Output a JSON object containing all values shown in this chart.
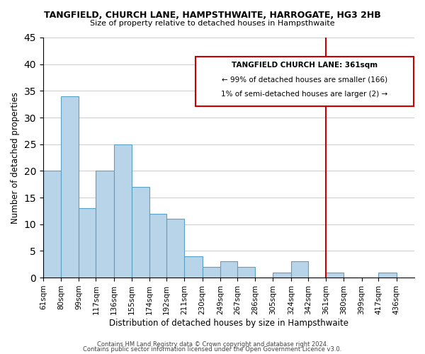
{
  "title": "TANGFIELD, CHURCH LANE, HAMPSTHWAITE, HARROGATE, HG3 2HB",
  "subtitle": "Size of property relative to detached houses in Hampsthwaite",
  "xlabel": "Distribution of detached houses by size in Hampsthwaite",
  "ylabel": "Number of detached properties",
  "bin_labels": [
    "61sqm",
    "80sqm",
    "99sqm",
    "117sqm",
    "136sqm",
    "155sqm",
    "174sqm",
    "192sqm",
    "211sqm",
    "230sqm",
    "249sqm",
    "267sqm",
    "286sqm",
    "305sqm",
    "324sqm",
    "342sqm",
    "361sqm",
    "380sqm",
    "399sqm",
    "417sqm",
    "436sqm"
  ],
  "bin_edges": [
    61,
    80,
    99,
    117,
    136,
    155,
    174,
    192,
    211,
    230,
    249,
    267,
    286,
    305,
    324,
    342,
    361,
    380,
    399,
    417,
    436
  ],
  "counts": [
    20,
    34,
    13,
    20,
    25,
    17,
    12,
    11,
    4,
    2,
    3,
    2,
    0,
    1,
    3,
    0,
    1,
    0,
    0,
    1
  ],
  "bar_color": "#b8d4e8",
  "bar_edge_color": "#5a9fc4",
  "marker_value": 361,
  "marker_color": "#cc0000",
  "annotation_title": "TANGFIELD CHURCH LANE: 361sqm",
  "annotation_line1": "← 99% of detached houses are smaller (166)",
  "annotation_line2": "1% of semi-detached houses are larger (2) →",
  "ylim": [
    0,
    45
  ],
  "yticks": [
    0,
    5,
    10,
    15,
    20,
    25,
    30,
    35,
    40,
    45
  ],
  "footer1": "Contains HM Land Registry data © Crown copyright and database right 2024.",
  "footer2": "Contains public sector information licensed under the Open Government Licence v3.0."
}
